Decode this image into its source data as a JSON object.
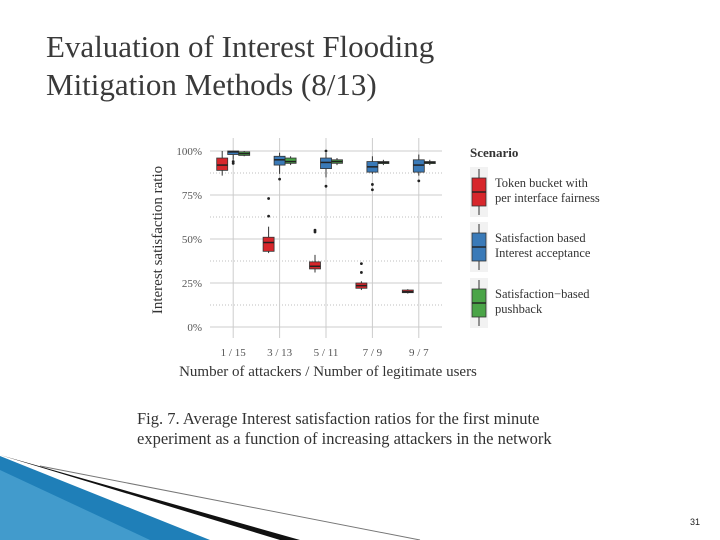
{
  "slide": {
    "title_line1": "Evaluation of Interest Flooding",
    "title_line2": "Mitigation Methods (8/13)",
    "caption_line1": "Fig. 7.    Average  Interest  satisfaction  ratios  for  the  first  minute",
    "caption_line2": "experiment as a function of increasing attackers in the network",
    "page_number": "31"
  },
  "colors": {
    "token_bucket": "#d7262b",
    "satisfaction_accept": "#3a7ab8",
    "satisfaction_pushback": "#4aa447",
    "grid": "#cccccc",
    "axis_text": "#555555",
    "decor_blue": "#1f7fb8"
  },
  "chart_data": {
    "type": "boxplot",
    "ylabel": "Interest satisfaction ratio",
    "xlabel": "Number of attackers / Number of legitimate users",
    "categories": [
      "1 / 15",
      "3 / 13",
      "5 / 11",
      "7 / 9",
      "9 / 7"
    ],
    "ylim": [
      0,
      100
    ],
    "yticks": [
      0,
      25,
      50,
      75,
      100
    ],
    "ytick_labels": [
      "0%",
      "25%",
      "50%",
      "75%",
      "100%"
    ],
    "grid": true,
    "legend_title": "Scenario",
    "legend_position": "right",
    "series": [
      {
        "name": "Token bucket with per interface fairness",
        "legend_line1": "Token bucket with",
        "legend_line2": "per interface fairness",
        "color_key": "token_bucket",
        "boxes": [
          {
            "min": 86,
            "q1": 89,
            "median": 92,
            "q3": 96,
            "max": 100,
            "outliers": []
          },
          {
            "min": 42,
            "q1": 43,
            "median": 48,
            "q3": 51,
            "max": 57,
            "outliers": [
              63,
              73
            ]
          },
          {
            "min": 31,
            "q1": 33,
            "median": 34.5,
            "q3": 37,
            "max": 41,
            "outliers": [
              54,
              55
            ]
          },
          {
            "min": 21,
            "q1": 22,
            "median": 23.5,
            "q3": 25,
            "max": 26,
            "outliers": [
              31,
              36
            ]
          },
          {
            "min": 19,
            "q1": 19.5,
            "median": 20,
            "q3": 21,
            "max": 21.5,
            "outliers": []
          }
        ]
      },
      {
        "name": "Satisfaction based Interest acceptance",
        "legend_line1": "Satisfaction  based",
        "legend_line2": "Interest acceptance",
        "color_key": "satisfaction_accept",
        "boxes": [
          {
            "min": 95,
            "q1": 98,
            "median": 99.5,
            "q3": 100,
            "max": 100,
            "outliers": [
              93,
              94
            ]
          },
          {
            "min": 87,
            "q1": 92,
            "median": 95,
            "q3": 97,
            "max": 99,
            "outliers": [
              84
            ]
          },
          {
            "min": 85,
            "q1": 90,
            "median": 93.5,
            "q3": 96,
            "max": 99,
            "outliers": [
              80,
              100
            ]
          },
          {
            "min": 87,
            "q1": 88,
            "median": 91,
            "q3": 94,
            "max": 97,
            "outliers": [
              78,
              81
            ]
          },
          {
            "min": 86,
            "q1": 88,
            "median": 92,
            "q3": 95,
            "max": 98,
            "outliers": [
              83
            ]
          }
        ]
      },
      {
        "name": "Satisfaction-based pushback",
        "legend_line1": "Satisfaction−based",
        "legend_line2": "pushback",
        "color_key": "satisfaction_pushback",
        "boxes": [
          {
            "min": 97,
            "q1": 97.5,
            "median": 98.5,
            "q3": 99.5,
            "max": 100,
            "outliers": []
          },
          {
            "min": 92,
            "q1": 93,
            "median": 94,
            "q3": 96,
            "max": 97,
            "outliers": []
          },
          {
            "min": 92,
            "q1": 93,
            "median": 94,
            "q3": 95,
            "max": 96,
            "outliers": []
          },
          {
            "min": 92,
            "q1": 93,
            "median": 93.5,
            "q3": 94,
            "max": 95,
            "outliers": []
          },
          {
            "min": 92,
            "q1": 93,
            "median": 93.5,
            "q3": 94,
            "max": 95,
            "outliers": []
          }
        ]
      }
    ]
  }
}
